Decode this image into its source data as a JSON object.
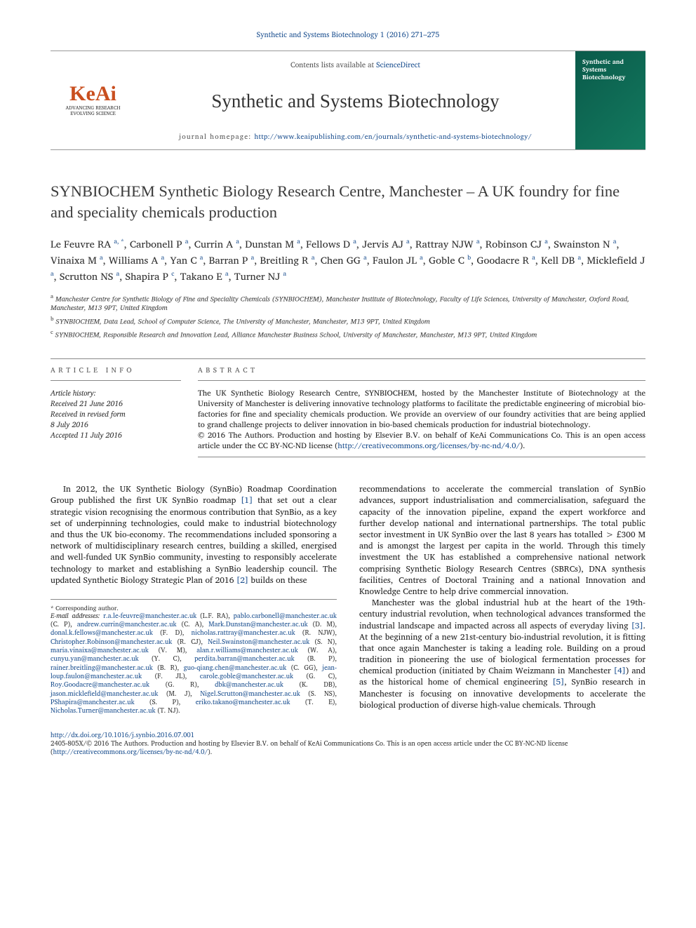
{
  "citation": "Synthetic and Systems Biotechnology 1 (2016) 271–275",
  "banner": {
    "logo_main": "KeAi",
    "logo_sub": "ADVANCING RESEARCH EVOLVING SCIENCE",
    "contents_prefix": "Contents lists available at ",
    "contents_link": "ScienceDirect",
    "journal_title": "Synthetic and Systems Biotechnology",
    "homepage_label": "journal homepage: ",
    "homepage_url": "http://www.keaipublishing.com/en/journals/synthetic-and-systems-biotechnology/",
    "cover_text": "Synthetic and Systems Biotechnology"
  },
  "article": {
    "title": "SYNBIOCHEM Synthetic Biology Research Centre, Manchester – A UK foundry for fine and speciality chemicals production",
    "authors_html": "Le Feuvre RA <sup>a, *</sup>, Carbonell P <sup>a</sup>, Currin A <sup>a</sup>, Dunstan M <sup>a</sup>, Fellows D <sup>a</sup>, Jervis AJ <sup>a</sup>, Rattray NJW <sup>a</sup>, Robinson CJ <sup>a</sup>, Swainston N <sup>a</sup>, Vinaixa M <sup>a</sup>, Williams A <sup>a</sup>, Yan C <sup>a</sup>, Barran P <sup>a</sup>, Breitling R <sup>a</sup>, Chen GG <sup>a</sup>, Faulon JL <sup>a</sup>, Goble C <sup>b</sup>, Goodacre R <sup>a</sup>, Kell DB <sup>a</sup>, Micklefield J <sup>a</sup>, Scrutton NS <sup>a</sup>, Shapira P <sup>c</sup>, Takano E <sup>a</sup>, Turner NJ <sup>a</sup>",
    "affiliations": [
      {
        "key": "a",
        "text": "Manchester Centre for Synthetic Biology of Fine and Speciality Chemicals (SYNBIOCHEM), Manchester Institute of Biotechnology, Faculty of Life Sciences, University of Manchester, Oxford Road, Manchester, M13 9PT, United Kingdom"
      },
      {
        "key": "b",
        "text": "SYNBIOCHEM, Data Lead, School of Computer Science, The University of Manchester, Manchester, M13 9PT, United Kingdom"
      },
      {
        "key": "c",
        "text": "SYNBIOCHEM, Responsible Research and Innovation Lead, Alliance Manchester Business School, University of Manchester, Manchester, M13 9PT, United Kingdom"
      }
    ]
  },
  "info": {
    "head_left": "article info",
    "head_right": "abstract",
    "history_label": "Article history:",
    "history_lines": [
      "Received 21 June 2016",
      "Received in revised form",
      "8 July 2016",
      "Accepted 11 July 2016"
    ],
    "abstract": "The UK Synthetic Biology Research Centre, SYNBIOCHEM, hosted by the Manchester Institute of Biotechnology at the University of Manchester is delivering innovative technology platforms to facilitate the predictable engineering of microbial bio-factories for fine and speciality chemicals production. We provide an overview of our foundry activities that are being applied to grand challenge projects to deliver innovation in bio-based chemicals production for industrial biotechnology.",
    "copyright": "© 2016 The Authors. Production and hosting by Elsevier B.V. on behalf of KeAi Communications Co. This is an open access article under the CC BY-NC-ND license (",
    "cc_url": "http://creativecommons.org/licenses/by-nc-nd/4.0/",
    "cc_close": ")."
  },
  "body": {
    "left": "In 2012, the UK Synthetic Biology (SynBio) Roadmap Coordination Group published the first UK SynBio roadmap [1] that set out a clear strategic vision recognising the enormous contribution that SynBio, as a key set of underpinning technologies, could make to industrial biotechnology and thus the UK bio-economy. The recommendations included sponsoring a network of multidisciplinary research centres, building a skilled, energised and well-funded UK SynBio community, investing to responsibly accelerate technology to market and establishing a SynBio leadership council. The updated Synthetic Biology Strategic Plan of 2016 [2] builds on these",
    "right_p1": "recommendations to accelerate the commercial translation of SynBio advances, support industrialisation and commercialisation, safeguard the capacity of the innovation pipeline, expand the expert workforce and further develop national and international partnerships. The total public sector investment in UK SynBio over the last 8 years has totalled > £300 M and is amongst the largest per capita in the world. Through this timely investment the UK has established a comprehensive national network comprising Synthetic Biology Research Centres (SBRCs), DNA synthesis facilities, Centres of Doctoral Training and a national Innovation and Knowledge Centre to help drive commercial innovation.",
    "right_p2": "Manchester was the global industrial hub at the heart of the 19th-century industrial revolution, when technological advances transformed the industrial landscape and impacted across all aspects of everyday living [3]. At the beginning of a new 21st-century bio-industrial revolution, it is fitting that once again Manchester is taking a leading role. Building on a proud tradition in pioneering the use of biological fermentation processes for chemical production (initiated by Chaim Weizmann in Manchester [4]) and as the historical home of chemical engineering [5], SynBio research in Manchester is focusing on innovative developments to accelerate the biological production of diverse high-value chemicals. Through"
  },
  "footnotes": {
    "corr": "* Corresponding author.",
    "email_label": "E-mail addresses:",
    "emails": "r.a.le-feuvre@manchester.ac.uk (L.F. RA), pablo.carbonell@manchester.ac.uk (C. P), andrew.currin@manchester.ac.uk (C. A), Mark.Dunstan@manchester.ac.uk (D. M), donal.k.fellows@manchester.ac.uk (F. D), nicholas.rattray@manchester.ac.uk (R. NJW), Christopher.Robinson@manchester.ac.uk (R. CJ), Neil.Swainston@manchester.ac.uk (S. N), maria.vinaixa@manchester.ac.uk (V. M), alan.r.williams@manchester.ac.uk (W. A), cunyu.yan@manchester.ac.uk (Y. C), perdita.barran@manchester.ac.uk (B. P), rainer.breitling@manchester.ac.uk (B. R), guo-qiang.chen@manchester.ac.uk (C. GG), jean-loup.faulon@manchester.ac.uk (F. JL), carole.goble@manchester.ac.uk (G. C), Roy.Goodacre@manchester.ac.uk (G. R), dbk@manchester.ac.uk (K. DB), jason.micklefield@manchester.ac.uk (M. J), Nigel.Scrutton@manchester.ac.uk (S. NS), PShapira@manchester.ac.uk (S. P), eriko.takano@manchester.ac.uk (T. E), Nicholas.Turner@manchester.ac.uk (T. NJ)."
  },
  "doi": {
    "url": "http://dx.doi.org/10.1016/j.synbio.2016.07.001",
    "line2": "2405-805X/© 2016 The Authors. Production and hosting by Elsevier B.V. on behalf of KeAi Communications Co. This is an open access article under the CC BY-NC-ND license (",
    "cc_url": "http://creativecommons.org/licenses/by-nc-nd/4.0/",
    "close": ")."
  },
  "colors": {
    "link": "#1b4f8f",
    "keai": "#c94f1f",
    "cover_bg": "#0a5a4a",
    "rule": "#888888"
  },
  "typography": {
    "body_fontsize": 12,
    "title_fontsize": 22.5,
    "authors_fontsize": 14.5,
    "affil_fontsize": 10,
    "abstract_fontsize": 11.2,
    "footnote_fontsize": 9.5
  }
}
